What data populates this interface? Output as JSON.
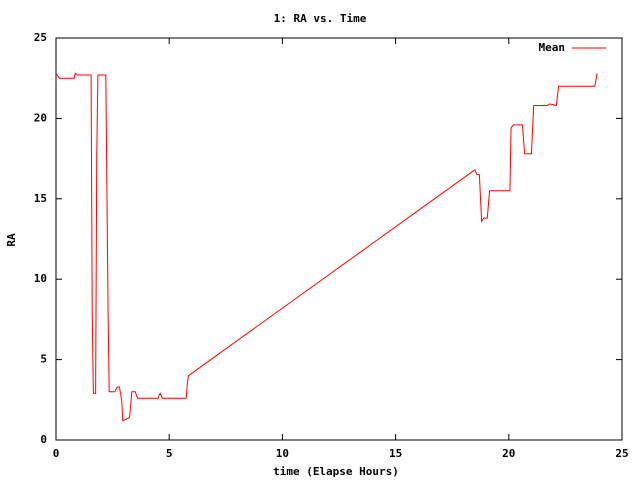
{
  "chart_data": {
    "type": "line",
    "title": "1: RA vs. Time",
    "x_label": "time (Elapse Hours)",
    "y_label": "RA",
    "legend": "top-right",
    "x": [
      0,
      0.15,
      0.8,
      0.85,
      0.95,
      1.55,
      1.6,
      1.65,
      1.75,
      1.8,
      1.85,
      2.2,
      2.3,
      2.35,
      2.6,
      2.7,
      2.8,
      2.9,
      2.95,
      3.1,
      3.25,
      3.35,
      3.5,
      3.6,
      4.5,
      4.6,
      4.7,
      5.75,
      5.8,
      5.85,
      18.4,
      18.5,
      18.6,
      18.7,
      18.8,
      18.9,
      19.05,
      19.15,
      20.05,
      20.1,
      20.2,
      20.6,
      20.7,
      21.0,
      21.1,
      21.7,
      21.8,
      22.1,
      22.2,
      23.8,
      23.9
    ],
    "series": [
      {
        "name": "Mean",
        "color": "#ff0000",
        "values": [
          22.8,
          22.5,
          22.5,
          22.8,
          22.7,
          22.7,
          8,
          2.9,
          2.9,
          17.7,
          22.7,
          22.7,
          8,
          3.0,
          3.0,
          3.3,
          3.3,
          2.5,
          1.2,
          1.3,
          1.4,
          3.0,
          3.0,
          2.6,
          2.6,
          2.9,
          2.6,
          2.6,
          3.5,
          4.0,
          16.7,
          16.8,
          16.5,
          16.5,
          13.6,
          13.8,
          13.8,
          15.5,
          15.5,
          19.4,
          19.6,
          19.6,
          17.8,
          17.8,
          20.8,
          20.8,
          20.9,
          20.8,
          22.0,
          22.0,
          22.8
        ]
      }
    ],
    "xlim": [
      0,
      25
    ],
    "xticks": [
      0,
      5,
      10,
      15,
      20,
      25
    ],
    "ylim": [
      0,
      25
    ],
    "yticks": [
      0,
      5,
      10,
      15,
      20,
      25
    ]
  }
}
